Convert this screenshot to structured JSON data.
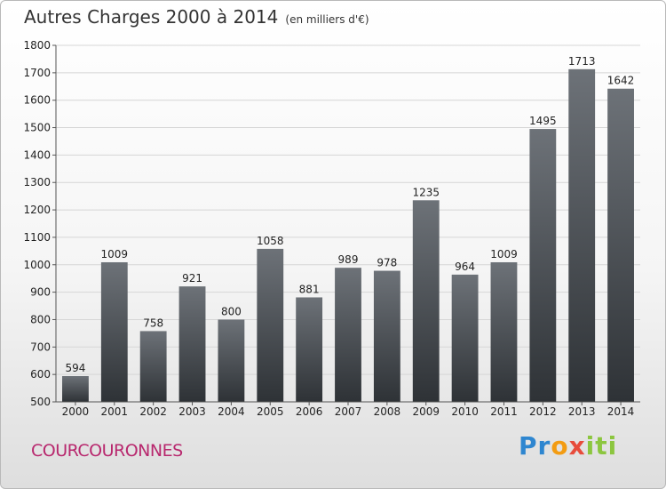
{
  "header": {
    "title": "Autres Charges 2000 à 2014",
    "unit": "(en milliers d'€)"
  },
  "footer": {
    "city": "COURCOURONNES",
    "brand_letters": [
      {
        "ch": "P",
        "color": "#2e86d0"
      },
      {
        "ch": "r",
        "color": "#2e86d0"
      },
      {
        "ch": "o",
        "color": "#f39c12"
      },
      {
        "ch": "x",
        "color": "#e74c3c"
      },
      {
        "ch": "i",
        "color": "#8cc63f"
      },
      {
        "ch": "t",
        "color": "#8cc63f"
      },
      {
        "ch": "i",
        "color": "#8cc63f"
      }
    ]
  },
  "colors": {
    "bar_top": "#6d7278",
    "bar_bottom": "#2e3236",
    "grid": "#d6d6d6"
  },
  "chart_data": {
    "type": "bar",
    "title": "Autres Charges 2000 à 2014",
    "subtitle": "(en milliers d'€)",
    "xlabel": "",
    "ylabel": "",
    "categories": [
      "2000",
      "2001",
      "2002",
      "2003",
      "2004",
      "2005",
      "2006",
      "2007",
      "2008",
      "2009",
      "2010",
      "2011",
      "2012",
      "2013",
      "2014"
    ],
    "values": [
      594,
      1009,
      758,
      921,
      800,
      1058,
      881,
      989,
      978,
      1235,
      964,
      1009,
      1495,
      1713,
      1642
    ],
    "ylim": [
      500,
      1800
    ],
    "yticks": [
      500,
      600,
      700,
      800,
      900,
      1000,
      1100,
      1200,
      1300,
      1400,
      1500,
      1600,
      1700,
      1800
    ],
    "grid": true,
    "data_labels": true
  }
}
